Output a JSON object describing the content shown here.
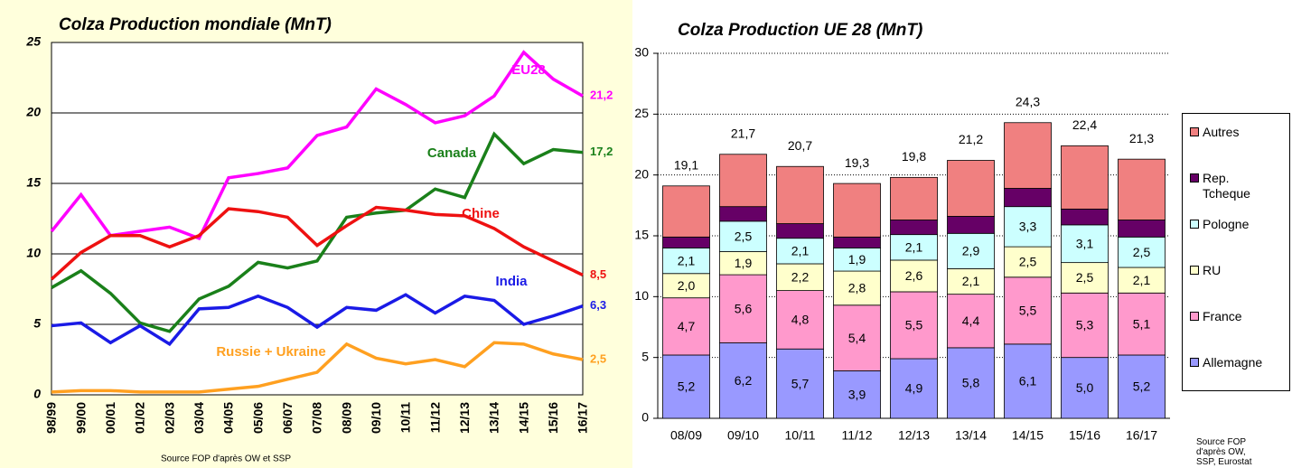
{
  "chart_data": [
    {
      "type": "line",
      "title": "Colza Production mondiale (MnT)",
      "source": "Source FOP d'après OW et SSP",
      "categories": [
        "98/99",
        "99/00",
        "00/01",
        "01/02",
        "02/03",
        "03/04",
        "04/05",
        "05/06",
        "06/07",
        "07/08",
        "08/09",
        "09/10",
        "10/11",
        "11/12",
        "12/13",
        "13/14",
        "14/15",
        "15/16",
        "16/17"
      ],
      "ylim": [
        0,
        25
      ],
      "yticks": [
        0,
        5,
        10,
        15,
        20,
        25
      ],
      "grid": true,
      "series": [
        {
          "name": "EU28",
          "color": "#ff00ff",
          "end_label": "21,2",
          "values": [
            11.6,
            14.2,
            11.3,
            11.6,
            11.9,
            11.1,
            15.4,
            15.7,
            16.1,
            18.4,
            19.0,
            21.7,
            20.6,
            19.3,
            19.8,
            21.2,
            24.3,
            22.4,
            21.2
          ]
        },
        {
          "name": "Canada",
          "color": "#1a801a",
          "end_label": "17,2",
          "values": [
            7.6,
            8.8,
            7.2,
            5.1,
            4.5,
            6.8,
            7.7,
            9.4,
            9.0,
            9.5,
            12.6,
            12.9,
            13.1,
            14.6,
            14.0,
            18.5,
            16.4,
            17.4,
            17.2
          ]
        },
        {
          "name": "Chine",
          "color": "#ee1111",
          "end_label": "8,5",
          "values": [
            8.2,
            10.1,
            11.3,
            11.3,
            10.5,
            11.3,
            13.2,
            13.0,
            12.6,
            10.6,
            12.0,
            13.3,
            13.1,
            12.8,
            12.7,
            11.8,
            10.5,
            9.5,
            8.5
          ]
        },
        {
          "name": "India",
          "color": "#1a1ae6",
          "end_label": "6,3",
          "values": [
            4.9,
            5.1,
            3.7,
            4.9,
            3.6,
            6.1,
            6.2,
            7.0,
            6.2,
            4.8,
            6.2,
            6.0,
            7.1,
            5.8,
            7.0,
            6.7,
            5.0,
            5.6,
            6.3
          ]
        },
        {
          "name": "Russie + Ukraine",
          "color": "#ffa020",
          "end_label": "2,5",
          "values": [
            0.2,
            0.3,
            0.3,
            0.2,
            0.2,
            0.2,
            0.4,
            0.6,
            1.1,
            1.6,
            3.6,
            2.6,
            2.2,
            2.5,
            2.0,
            3.7,
            3.6,
            2.9,
            2.5
          ]
        }
      ]
    },
    {
      "type": "stacked_bar",
      "title": "Colza Production UE 28 (MnT)",
      "source": "Source FOP d'après OW, SSP, Eurostat",
      "categories": [
        "08/09",
        "09/10",
        "10/11",
        "11/12",
        "12/13",
        "13/14",
        "14/15",
        "15/16",
        "16/17"
      ],
      "ylim": [
        0,
        30
      ],
      "yticks": [
        0,
        5,
        10,
        15,
        20,
        25,
        30
      ],
      "grid": true,
      "totals": [
        19.1,
        21.7,
        20.7,
        19.3,
        19.8,
        21.2,
        24.3,
        22.4,
        21.3
      ],
      "total_labels": [
        "19,1",
        "21,7",
        "20,7",
        "19,3",
        "19,8",
        "21,2",
        "24,3",
        "22,4",
        "21,3"
      ],
      "series": [
        {
          "name": "Allemagne",
          "color": "#9999ff",
          "values": [
            5.2,
            6.2,
            5.7,
            3.9,
            4.9,
            5.8,
            6.1,
            5.0,
            5.2
          ],
          "value_labels": [
            "5,2",
            "6,2",
            "5,7",
            "3,9",
            "4,9",
            "5,8",
            "6,1",
            "5,0",
            "5,2"
          ]
        },
        {
          "name": "France",
          "color": "#ff99cc",
          "values": [
            4.7,
            5.6,
            4.8,
            5.4,
            5.5,
            4.4,
            5.5,
            5.3,
            5.1
          ],
          "value_labels": [
            "4,7",
            "5,6",
            "4,8",
            "5,4",
            "5,5",
            "4,4",
            "5,5",
            "5,3",
            "5,1"
          ]
        },
        {
          "name": "RU",
          "color": "#ffffcc",
          "values": [
            2.0,
            1.9,
            2.2,
            2.8,
            2.6,
            2.1,
            2.5,
            2.5,
            2.1
          ],
          "value_labels": [
            "2,0",
            "1,9",
            "2,2",
            "2,8",
            "2,6",
            "2,1",
            "2,5",
            "2,5",
            "2,1"
          ]
        },
        {
          "name": "Pologne",
          "color": "#ccffff",
          "values": [
            2.1,
            2.5,
            2.1,
            1.9,
            2.1,
            2.9,
            3.3,
            3.1,
            2.5
          ],
          "value_labels": [
            "2,1",
            "2,5",
            "2,1",
            "1,9",
            "2,1",
            "2,9",
            "3,3",
            "3,1",
            "2,5"
          ]
        },
        {
          "name": "Rep. Tcheque",
          "color": "#660066",
          "values": [
            0.9,
            1.2,
            1.2,
            0.9,
            1.2,
            1.4,
            1.5,
            1.3,
            1.4
          ]
        },
        {
          "name": "Autres",
          "color": "#f08080",
          "values": [
            4.2,
            4.3,
            4.7,
            4.4,
            3.5,
            4.6,
            5.4,
            5.2,
            5.0
          ]
        }
      ]
    }
  ]
}
